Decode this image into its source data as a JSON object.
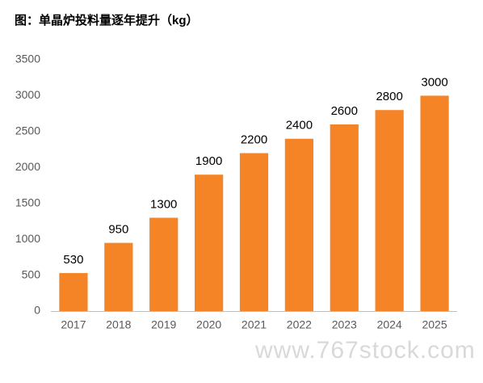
{
  "chart_data": {
    "type": "bar",
    "title": "图：单晶炉投料量逐年提升（kg）",
    "categories": [
      "2017",
      "2018",
      "2019",
      "2020",
      "2021",
      "2022",
      "2023",
      "2024",
      "2025"
    ],
    "values": [
      530,
      950,
      1300,
      1900,
      2200,
      2400,
      2600,
      2800,
      3000
    ],
    "color": "#f58426",
    "ylim": [
      0,
      3500
    ],
    "yticks": [
      0,
      500,
      1000,
      1500,
      2000,
      2500,
      3000,
      3500
    ],
    "grid": false,
    "watermark": "www.767stock.com"
  }
}
